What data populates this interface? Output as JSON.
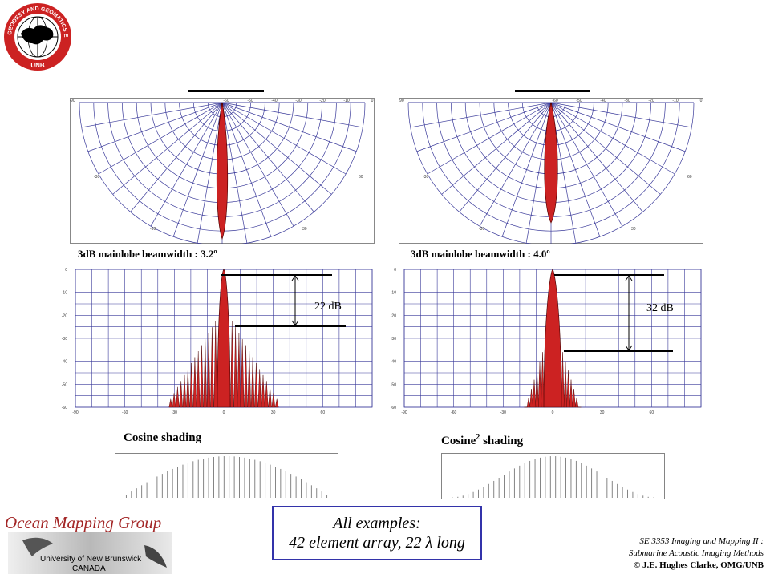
{
  "logo": {
    "ring_text": "GEODESY AND GEOMATICS ENGINEERING",
    "bottom_text": "UNB"
  },
  "panels": [
    {
      "polar_angle_labels": [
        "-90",
        "-60",
        "-50",
        "-40",
        "-30",
        "-20",
        "-10",
        "0"
      ],
      "polar_inner_labels": [
        "-30",
        "-30",
        "30",
        "60"
      ],
      "beam_caption": "3dB mainlobe beamwidth : 3.2º",
      "sidelobe_label": "22 dB",
      "shading_title": "Cosine shading"
    },
    {
      "polar_angle_labels": [
        "-90",
        "-60",
        "-50",
        "-40",
        "-30",
        "-20",
        "-10",
        "0"
      ],
      "polar_inner_labels": [
        "-30",
        "-30",
        "30",
        "60"
      ],
      "beam_caption": "3dB mainlobe beamwidth : 4.0º",
      "sidelobe_label": "32 dB",
      "shading_title_base": "Cosine",
      "shading_title_sup": "2",
      "shading_title_rest": " shading"
    }
  ],
  "cartesian_y_ticks": [
    "0",
    "-10",
    "-20",
    "-30",
    "-40",
    "-50",
    "-60"
  ],
  "cartesian_x_ticks": [
    "-90",
    "-60",
    "-30",
    "0",
    "30",
    "60"
  ],
  "summary": {
    "line1": "All examples:",
    "line2": "42 element array, 22 λ long"
  },
  "footer": {
    "group_name": "Ocean Mapping Group",
    "university": "University of New Brunswick",
    "country": "CANADA",
    "course_line1": "SE 3353 Imaging and Mapping II :",
    "course_line2": "Submarine Acoustic Imaging Methods",
    "copyright": "© J.E. Hughes Clarke, OMG/UNB"
  },
  "colors": {
    "grid": "#3a3a9a",
    "lobe": "#cc2222",
    "logo_red": "#cc2222",
    "box_border": "#3333aa"
  }
}
